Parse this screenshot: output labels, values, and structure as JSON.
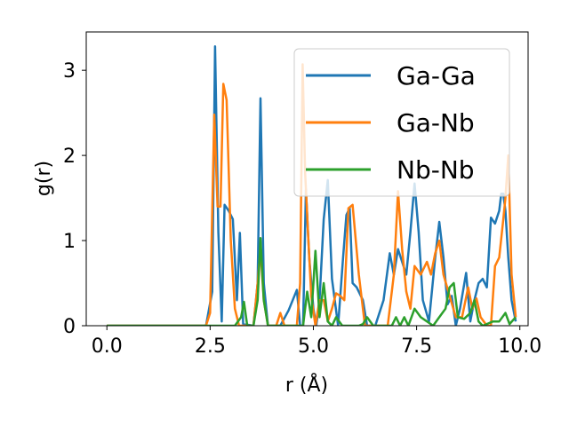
{
  "chart_data": {
    "type": "line",
    "title": "",
    "xlabel": "r (Å)",
    "ylabel": "g(r)",
    "xlim": [
      -0.5,
      10.2
    ],
    "ylim": [
      0,
      3.45
    ],
    "xticks": [
      0.0,
      2.5,
      5.0,
      7.5,
      10.0
    ],
    "xtick_labels": [
      "0.0",
      "2.5",
      "5.0",
      "7.5",
      "10.0"
    ],
    "yticks": [
      0,
      1,
      2,
      3
    ],
    "ytick_labels": [
      "0",
      "1",
      "2",
      "3"
    ],
    "grid": false,
    "legend_position": "top-right",
    "series": [
      {
        "name": "Ga-Ga",
        "color": "#1f77b4",
        "x": [
          0,
          2.4,
          2.55,
          2.62,
          2.7,
          2.78,
          2.85,
          2.95,
          3.05,
          3.15,
          3.22,
          3.3,
          3.55,
          3.65,
          3.72,
          3.8,
          3.9,
          4.2,
          4.4,
          4.6,
          4.68,
          4.75,
          4.82,
          4.9,
          5.0,
          5.07,
          5.15,
          5.25,
          5.35,
          5.45,
          5.6,
          5.72,
          5.8,
          5.88,
          5.95,
          6.05,
          6.2,
          6.3,
          6.5,
          6.7,
          6.85,
          6.95,
          7.05,
          7.15,
          7.25,
          7.35,
          7.45,
          7.55,
          7.65,
          7.8,
          7.95,
          8.05,
          8.15,
          8.25,
          8.35,
          8.45,
          8.55,
          8.7,
          8.8,
          8.9,
          9.0,
          9.1,
          9.2,
          9.3,
          9.4,
          9.5,
          9.55,
          9.6,
          9.65,
          9.72,
          9.8,
          9.9
        ],
        "y": [
          0,
          0,
          0.4,
          3.28,
          1.1,
          0.05,
          1.42,
          1.35,
          1.25,
          0.3,
          1.09,
          0.02,
          0,
          0.5,
          2.67,
          0.5,
          0,
          0,
          0.18,
          0.42,
          0,
          0,
          1.6,
          0.8,
          0.2,
          0,
          0.3,
          1.25,
          1.71,
          0.55,
          0,
          0.8,
          1.3,
          1.38,
          0.5,
          0.45,
          0.3,
          0,
          0,
          0.3,
          0.85,
          0.6,
          0.9,
          0.75,
          0.6,
          1.1,
          1.67,
          1.1,
          0.3,
          0.05,
          0.8,
          1.22,
          0.8,
          0.25,
          0.35,
          0,
          0.2,
          0.62,
          0.05,
          0.3,
          0.5,
          0.55,
          0.45,
          1.27,
          1.2,
          1.35,
          1.55,
          1.55,
          1.35,
          0.8,
          0.3,
          0.05
        ]
      },
      {
        "name": "Ga-Nb",
        "color": "#ff7f0e",
        "x": [
          0,
          2.4,
          2.5,
          2.6,
          2.68,
          2.75,
          2.82,
          2.9,
          3.0,
          3.1,
          3.2,
          3.3,
          3.55,
          3.65,
          3.72,
          3.8,
          3.9,
          4.1,
          4.2,
          4.3,
          4.45,
          4.6,
          4.68,
          4.74,
          4.8,
          4.88,
          4.95,
          5.05,
          5.15,
          5.25,
          5.35,
          5.45,
          5.55,
          5.65,
          5.75,
          5.85,
          5.95,
          6.1,
          6.25,
          6.4,
          6.6,
          6.8,
          6.95,
          7.05,
          7.15,
          7.25,
          7.35,
          7.45,
          7.6,
          7.75,
          7.85,
          7.95,
          8.05,
          8.15,
          8.3,
          8.45,
          8.6,
          8.75,
          8.85,
          8.95,
          9.05,
          9.2,
          9.3,
          9.4,
          9.5,
          9.6,
          9.65,
          9.72,
          9.8,
          9.9
        ],
        "y": [
          0,
          0,
          0.15,
          2.48,
          1.4,
          1.4,
          2.84,
          2.65,
          1.0,
          0.2,
          0,
          0,
          0,
          0.5,
          0.9,
          0.3,
          0,
          0,
          0.15,
          0,
          0,
          0,
          0.5,
          3.07,
          1.8,
          1.0,
          0.35,
          0,
          0.3,
          0.3,
          0.05,
          0.2,
          0.38,
          0.35,
          0.3,
          1.38,
          1.42,
          0.6,
          0,
          0,
          0,
          0,
          0.6,
          1.58,
          0.9,
          0.4,
          0.2,
          0.7,
          0.6,
          0.75,
          0.6,
          0.85,
          1.0,
          0.6,
          0.35,
          0.1,
          0.1,
          0.45,
          0.2,
          0.32,
          0.1,
          0,
          0,
          0.7,
          0.8,
          1.25,
          1.5,
          2.0,
          0.6,
          0.1
        ]
      },
      {
        "name": "Nb-Nb",
        "color": "#2ca02c",
        "x": [
          0,
          2.5,
          3.1,
          3.25,
          3.32,
          3.4,
          3.55,
          3.65,
          3.72,
          3.8,
          3.9,
          4.5,
          4.75,
          4.85,
          4.95,
          5.05,
          5.15,
          5.25,
          5.35,
          5.45,
          5.55,
          5.7,
          6.1,
          6.2,
          6.3,
          6.45,
          6.7,
          6.9,
          7.0,
          7.1,
          7.2,
          7.3,
          7.45,
          7.6,
          7.75,
          7.9,
          8.05,
          8.2,
          8.3,
          8.4,
          8.5,
          8.65,
          8.8,
          8.9,
          9.0,
          9.1,
          9.2,
          9.35,
          9.5,
          9.65,
          9.75,
          9.9
        ],
        "y": [
          0,
          0,
          0,
          0.1,
          0.28,
          0,
          0,
          0.3,
          1.03,
          0.3,
          0,
          0,
          0,
          0.4,
          0.1,
          0.88,
          0.1,
          0.5,
          0.05,
          0,
          0.1,
          0,
          0,
          0.02,
          0.1,
          0,
          0,
          0,
          0.1,
          0,
          0.1,
          0,
          0.2,
          0.1,
          0.05,
          0,
          0.1,
          0.2,
          0.45,
          0.5,
          0.1,
          0.08,
          0.15,
          0.3,
          0.05,
          0,
          0.02,
          0.05,
          0.05,
          0.15,
          0.02,
          0.1
        ]
      }
    ]
  }
}
